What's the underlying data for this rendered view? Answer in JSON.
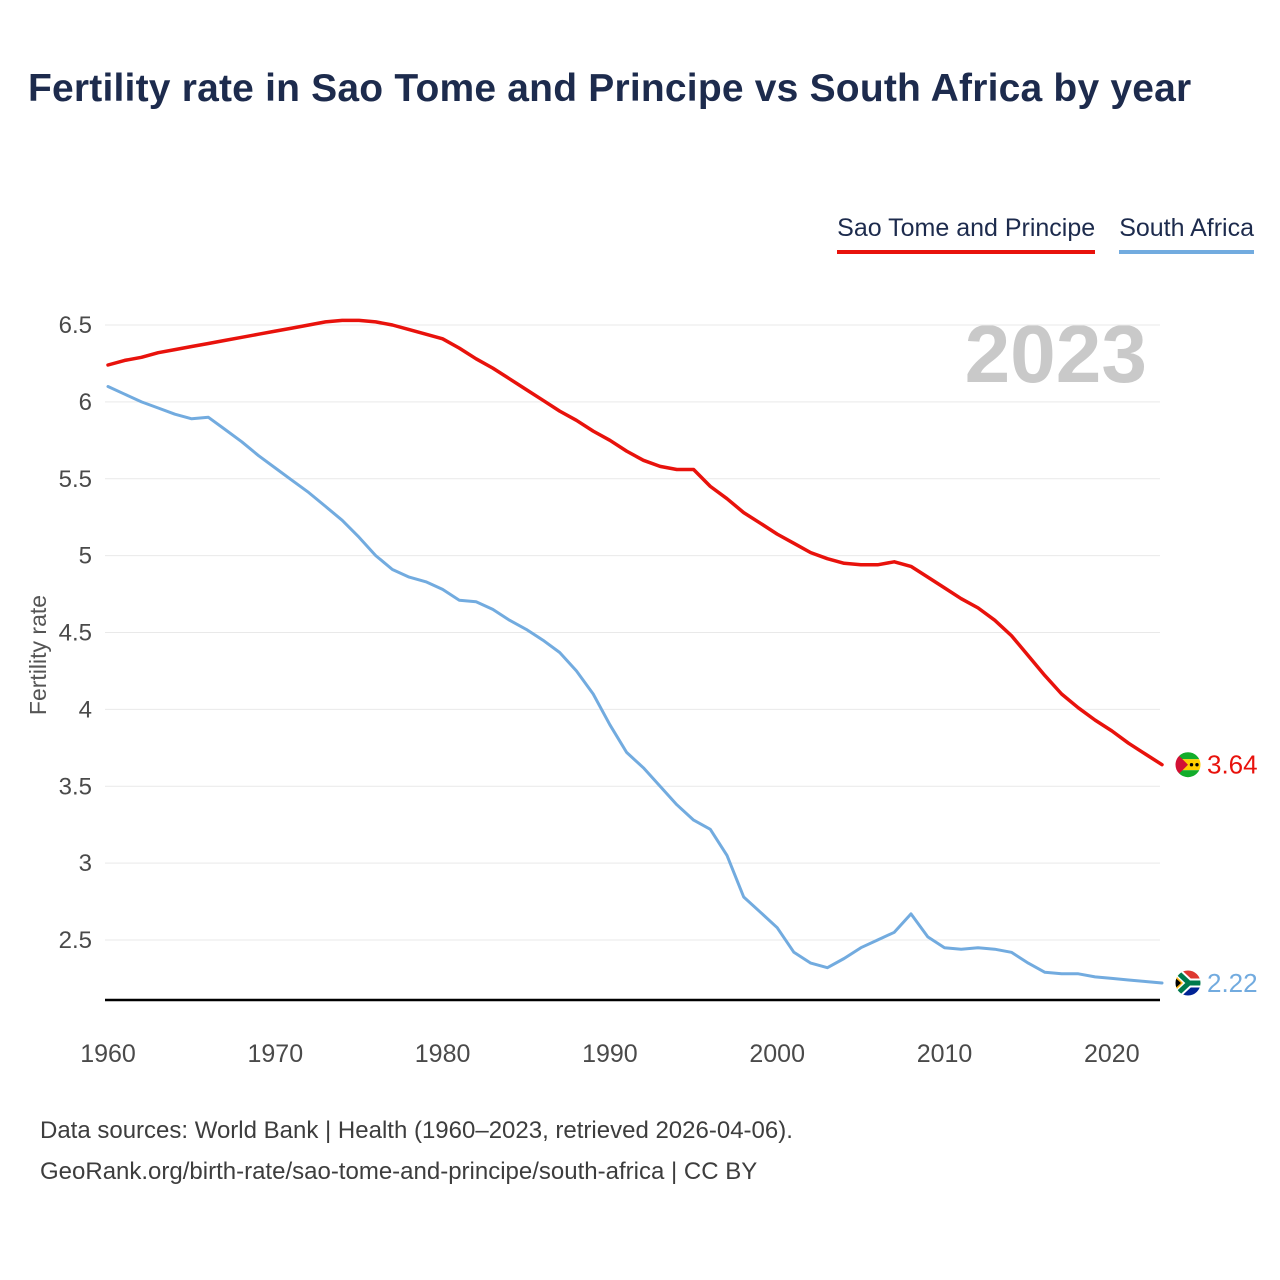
{
  "title": "Fertility rate in Sao Tome and Principe vs South Africa by year",
  "watermark_year": "2023",
  "legend": {
    "items": [
      {
        "label": "Sao Tome and Principe",
        "color": "#e8120c"
      },
      {
        "label": "South Africa",
        "color": "#72abdf"
      }
    ]
  },
  "y_axis": {
    "label": "Fertility rate",
    "tick_labels": [
      "2.5",
      "3",
      "3.5",
      "4",
      "4.5",
      "5",
      "5.5",
      "6",
      "6.5"
    ]
  },
  "x_axis": {
    "tick_labels": [
      "1960",
      "1970",
      "1980",
      "1990",
      "2000",
      "2010",
      "2020"
    ]
  },
  "end_labels": {
    "sao_tome": "3.64",
    "south_africa": "2.22"
  },
  "footer": {
    "line1": "Data sources: World Bank | Health (1960–2023, retrieved 2026-04-06).",
    "line2": "GeoRank.org/birth-rate/sao-tome-and-principe/south-africa | CC BY"
  },
  "colors": {
    "sao_tome_red": "#e8120c",
    "south_africa_blue": "#72abdf",
    "title_navy": "#1d2b4d",
    "watermark_gray": "#c9c9c9",
    "grid_gray": "#e9e9e9",
    "axis_black": "#000000",
    "tick_text": "#4a4a4a"
  },
  "chart_data": {
    "type": "line",
    "title": "Fertility rate in Sao Tome and Principe vs South Africa by year",
    "xlabel": "",
    "ylabel": "Fertility rate",
    "xlim": [
      1960,
      2023
    ],
    "ylim": [
      2.1,
      6.6
    ],
    "grid": "horizontal",
    "legend_position": "top-right",
    "x": [
      1960,
      1961,
      1962,
      1963,
      1964,
      1965,
      1966,
      1967,
      1968,
      1969,
      1970,
      1971,
      1972,
      1973,
      1974,
      1975,
      1976,
      1977,
      1978,
      1979,
      1980,
      1981,
      1982,
      1983,
      1984,
      1985,
      1986,
      1987,
      1988,
      1989,
      1990,
      1991,
      1992,
      1993,
      1994,
      1995,
      1996,
      1997,
      1998,
      1999,
      2000,
      2001,
      2002,
      2003,
      2004,
      2005,
      2006,
      2007,
      2008,
      2009,
      2010,
      2011,
      2012,
      2013,
      2014,
      2015,
      2016,
      2017,
      2018,
      2019,
      2020,
      2021,
      2022,
      2023
    ],
    "series": [
      {
        "name": "Sao Tome and Principe",
        "color": "#e8120c",
        "values": [
          6.24,
          6.27,
          6.29,
          6.32,
          6.34,
          6.36,
          6.38,
          6.4,
          6.42,
          6.44,
          6.46,
          6.48,
          6.5,
          6.52,
          6.53,
          6.53,
          6.52,
          6.5,
          6.47,
          6.44,
          6.41,
          6.35,
          6.28,
          6.22,
          6.15,
          6.08,
          6.01,
          5.94,
          5.88,
          5.81,
          5.75,
          5.68,
          5.62,
          5.58,
          5.56,
          5.56,
          5.45,
          5.37,
          5.28,
          5.21,
          5.14,
          5.08,
          5.02,
          4.98,
          4.95,
          4.94,
          4.94,
          4.96,
          4.93,
          4.86,
          4.79,
          4.72,
          4.66,
          4.58,
          4.48,
          4.35,
          4.22,
          4.1,
          4.01,
          3.93,
          3.86,
          3.78,
          3.71,
          3.64
        ]
      },
      {
        "name": "South Africa",
        "color": "#72abdf",
        "values": [
          6.1,
          6.05,
          6.0,
          5.96,
          5.92,
          5.89,
          5.9,
          5.82,
          5.74,
          5.65,
          5.57,
          5.49,
          5.41,
          5.32,
          5.23,
          5.12,
          5.0,
          4.91,
          4.86,
          4.83,
          4.78,
          4.71,
          4.7,
          4.65,
          4.58,
          4.52,
          4.45,
          4.37,
          4.25,
          4.1,
          3.9,
          3.72,
          3.62,
          3.5,
          3.38,
          3.28,
          3.22,
          3.05,
          2.78,
          2.68,
          2.58,
          2.42,
          2.35,
          2.32,
          2.38,
          2.45,
          2.5,
          2.55,
          2.67,
          2.52,
          2.45,
          2.44,
          2.45,
          2.44,
          2.42,
          2.35,
          2.29,
          2.28,
          2.28,
          2.26,
          2.25,
          2.24,
          2.23,
          2.22
        ]
      }
    ],
    "end_labels": {
      "Sao Tome and Principe": 3.64,
      "South Africa": 2.22
    }
  }
}
